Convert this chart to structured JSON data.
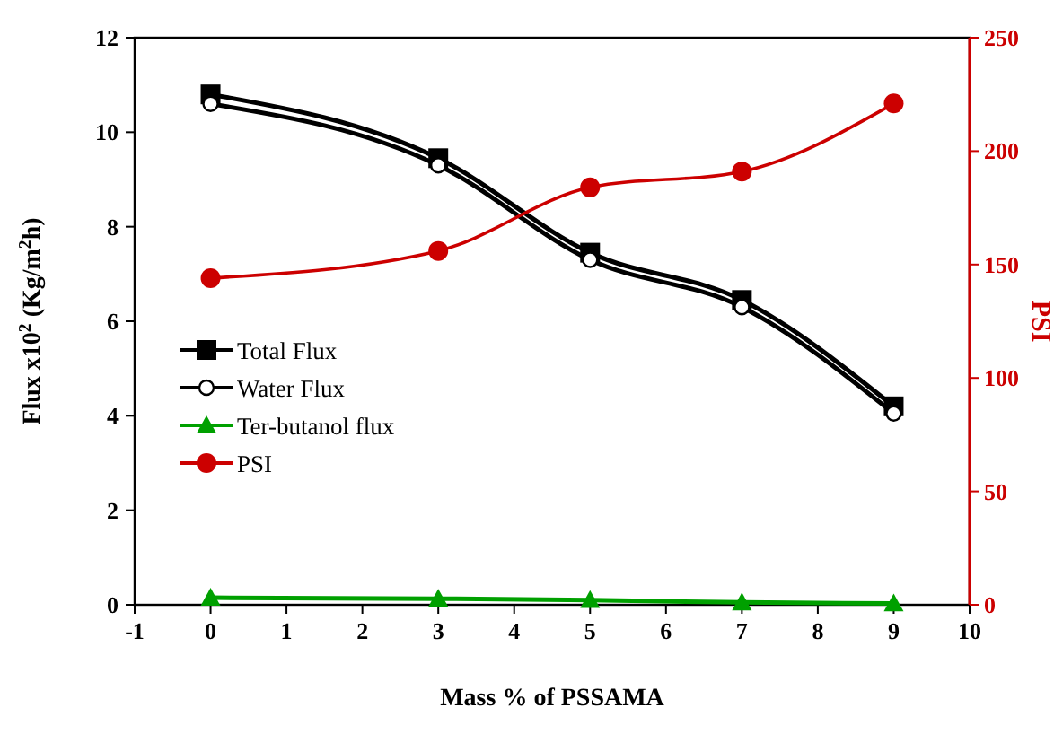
{
  "chart_data": {
    "type": "line",
    "xlabel": "Mass % of PSSAMA",
    "ylabel": "Flux x10$^{2}$ (Kg/m$^{2}$h)",
    "y2label": "PSI",
    "x": [
      0,
      3,
      5,
      7,
      9
    ],
    "xlim": [
      -1,
      10
    ],
    "xticks": [
      -1,
      0,
      1,
      2,
      3,
      4,
      5,
      6,
      7,
      8,
      9,
      10
    ],
    "ylim": [
      0,
      12
    ],
    "yticks": [
      0,
      2,
      4,
      6,
      8,
      10,
      12
    ],
    "y2lim": [
      0,
      250
    ],
    "y2ticks": [
      0,
      50,
      100,
      150,
      200,
      250
    ],
    "legend": "left",
    "grid": false,
    "line_style": "solid",
    "series": [
      {
        "name": "Total Flux",
        "color": "#000000",
        "marker": "square",
        "values": [
          10.8,
          9.45,
          7.45,
          6.45,
          4.2
        ]
      },
      {
        "name": "Water Flux",
        "color": "#000000",
        "marker": "circle-open",
        "values": [
          10.6,
          9.3,
          7.3,
          6.3,
          4.05
        ]
      },
      {
        "name": "Ter-butanol flux",
        "color": "#00a000",
        "marker": "triangle",
        "values": [
          0.15,
          0.13,
          0.1,
          0.05,
          0.03
        ]
      },
      {
        "name": "PSI",
        "color": "#cc0000",
        "marker": "circle",
        "axis": "y2",
        "values": [
          144,
          156,
          184,
          191,
          221
        ]
      }
    ]
  }
}
